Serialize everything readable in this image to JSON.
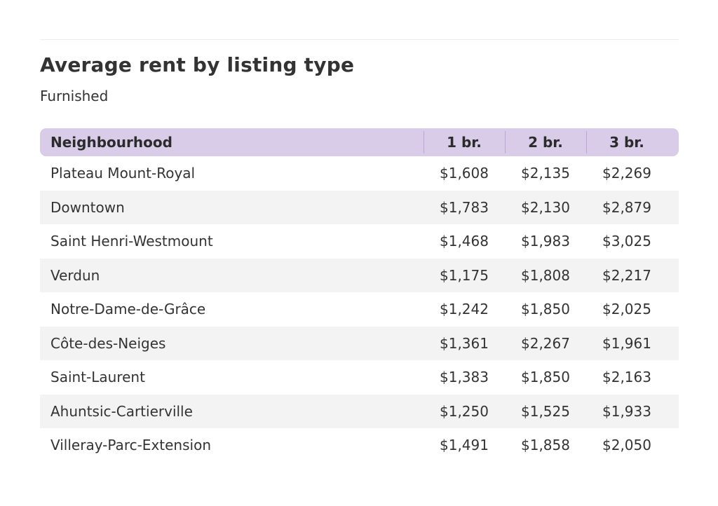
{
  "title": "Average rent by listing type",
  "subtitle": "Furnished",
  "chart_data": {
    "type": "table",
    "columns": [
      "Neighbourhood",
      "1 br.",
      "2 br.",
      "3 br."
    ],
    "rows": [
      [
        "Plateau Mount-Royal",
        "$1,608",
        "$2,135",
        "$2,269"
      ],
      [
        "Downtown",
        "$1,783",
        "$2,130",
        "$2,879"
      ],
      [
        "Saint Henri-Westmount",
        "$1,468",
        "$1,983",
        "$3,025"
      ],
      [
        "Verdun",
        "$1,175",
        "$1,808",
        "$2,217"
      ],
      [
        "Notre-Dame-de-Grâce",
        "$1,242",
        "$1,850",
        "$2,025"
      ],
      [
        "Côte-des-Neiges",
        "$1,361",
        "$2,267",
        "$1,961"
      ],
      [
        "Saint-Laurent",
        "$1,383",
        "$1,850",
        "$2,163"
      ],
      [
        "Ahuntsic-Cartierville",
        "$1,250",
        "$1,525",
        "$1,933"
      ],
      [
        "Villeray-Parc-Extension",
        "$1,491",
        "$1,858",
        "$2,050"
      ]
    ]
  },
  "colors": {
    "header_background": "#d8cce8",
    "header_separator": "#b9a9d0",
    "zebra_row": "#f3f3f3",
    "text": "#333333"
  }
}
